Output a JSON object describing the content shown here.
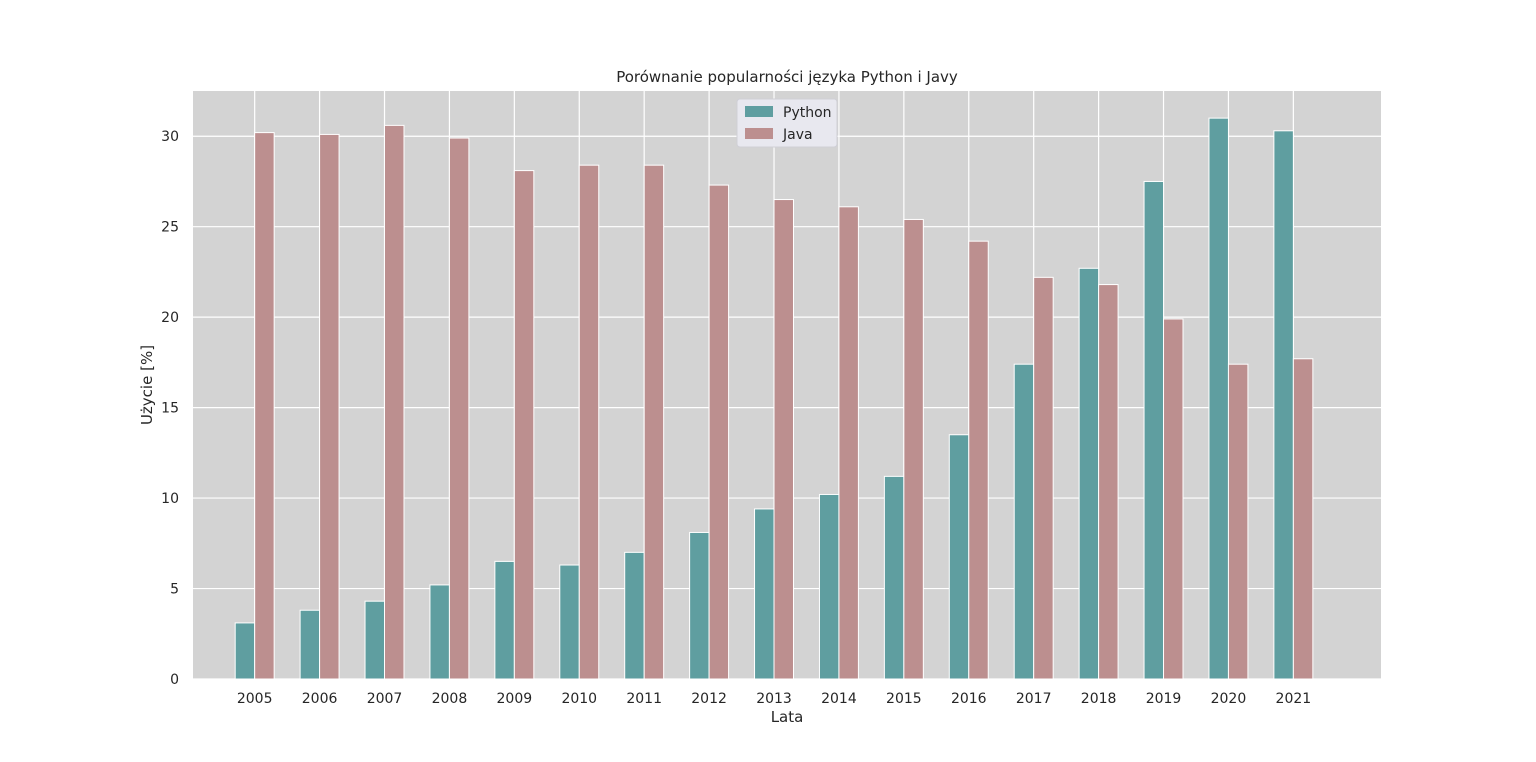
{
  "chart_data": {
    "type": "bar",
    "title": "Porównanie popularności języka Python i Javy",
    "xlabel": "Lata",
    "ylabel": "Użycie [%]",
    "categories": [
      "2005",
      "2006",
      "2007",
      "2008",
      "2009",
      "2010",
      "2011",
      "2012",
      "2013",
      "2014",
      "2015",
      "2016",
      "2017",
      "2018",
      "2019",
      "2020",
      "2021"
    ],
    "series": [
      {
        "name": "Python",
        "color": "#5f9ea0",
        "values": [
          3.1,
          3.8,
          4.3,
          5.2,
          6.5,
          6.3,
          7.0,
          8.1,
          9.4,
          10.2,
          11.2,
          13.5,
          17.4,
          22.7,
          27.5,
          31.0,
          30.3
        ]
      },
      {
        "name": "Java",
        "color": "#bc8f8f",
        "values": [
          30.2,
          30.1,
          30.6,
          29.9,
          28.1,
          28.4,
          28.4,
          27.3,
          26.5,
          26.1,
          25.4,
          24.2,
          22.2,
          21.8,
          19.9,
          17.4,
          17.7
        ]
      }
    ],
    "yticks": [
      0,
      5,
      10,
      15,
      20,
      25,
      30
    ],
    "ylim": [
      0,
      32.5
    ],
    "grid": true,
    "legend_position": "top-center",
    "background": "#d3d3d3",
    "grid_color": "#ffffff"
  }
}
